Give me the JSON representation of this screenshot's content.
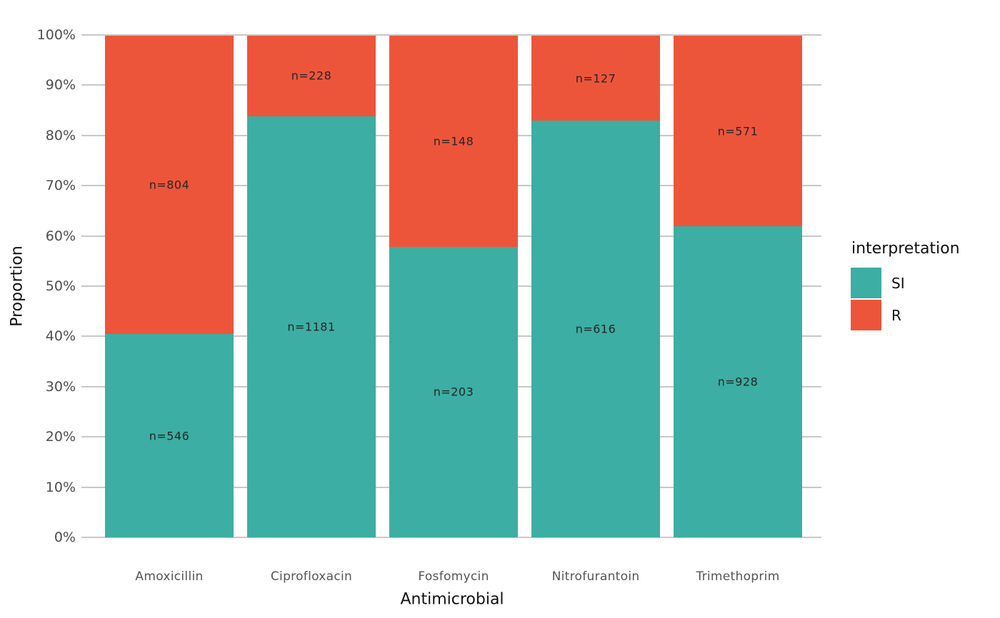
{
  "chart_data": {
    "type": "bar",
    "stacked": true,
    "orientation": "vertical",
    "normalized_to_percent": true,
    "title": "",
    "xlabel": "Antimicrobial",
    "ylabel": "Proportion",
    "categories": [
      "Amoxicillin",
      "Ciprofloxacin",
      "Fosfomycin",
      "Nitrofurantoin",
      "Trimethoprim"
    ],
    "series": [
      {
        "name": "SI",
        "color": "#3CAEA3",
        "values": [
          546,
          1181,
          203,
          616,
          928
        ]
      },
      {
        "name": "R",
        "color": "#ED553B",
        "values": [
          804,
          228,
          148,
          127,
          571
        ]
      }
    ],
    "segment_labels": {
      "SI": [
        "n=546",
        "n=1181",
        "n=203",
        "n=616",
        "n=928"
      ],
      "R": [
        "n=804",
        "n=228",
        "n=148",
        "n=127",
        "n=571"
      ]
    },
    "y_axis": {
      "min": 0,
      "max": 100,
      "ticks": [
        "0%",
        "10%",
        "20%",
        "30%",
        "40%",
        "50%",
        "60%",
        "70%",
        "80%",
        "90%",
        "100%"
      ]
    },
    "legend": {
      "title": "interpretation",
      "position": "right",
      "items": [
        {
          "label": "SI",
          "color": "#3CAEA3"
        },
        {
          "label": "R",
          "color": "#ED553B"
        }
      ]
    },
    "grid": true,
    "gridline_color": "#C8C8C8",
    "background": "#FFFFFF"
  }
}
